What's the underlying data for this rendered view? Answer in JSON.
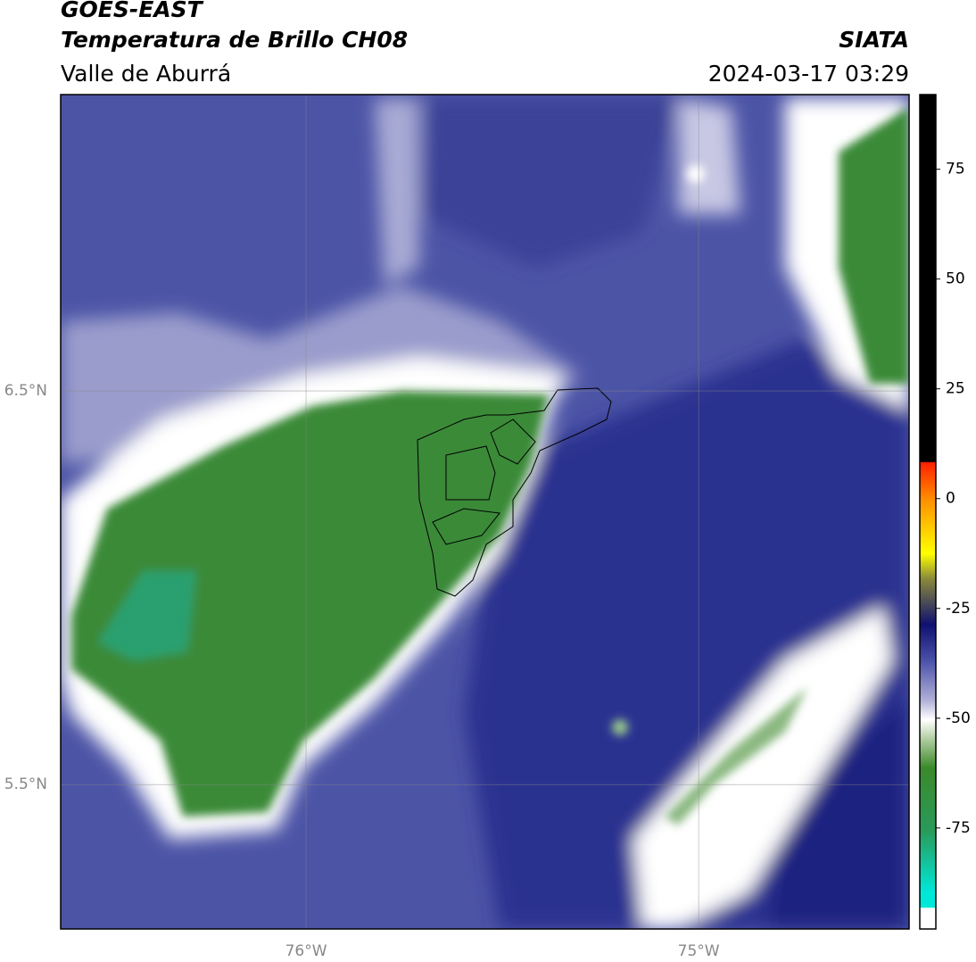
{
  "header": {
    "title": "GOES-EAST",
    "subtitle": "Temperatura de Brillo CH08",
    "region": "Valle de Aburrá",
    "source": "SIATA",
    "datetime": "2024-03-17 03:29"
  },
  "map": {
    "xlim": [
      -76.625,
      -74.464
    ],
    "ylim": [
      5.133,
      7.253
    ],
    "xticks": [
      {
        "value": -76,
        "label": "76°W"
      },
      {
        "value": -75,
        "label": "75°W"
      }
    ],
    "yticks": [
      {
        "value": 6.5,
        "label": "6.5°N"
      },
      {
        "value": 5.5,
        "label": "5.5°N"
      }
    ]
  },
  "colorbar": {
    "range": [
      -98,
      92
    ],
    "ticks": [
      75,
      50,
      25,
      0,
      -25,
      -50,
      -75
    ]
  }
}
